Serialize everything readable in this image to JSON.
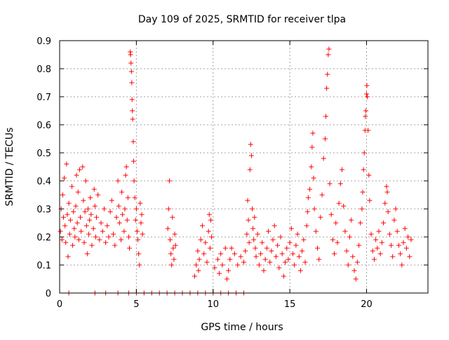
{
  "chart_data": {
    "type": "scatter",
    "title": "Day 109 of 2025, SRMTID for receiver tlpa",
    "xlabel": "GPS time / hours",
    "ylabel": "SRMTID / TECUs",
    "xlim": [
      0,
      24
    ],
    "ylim": [
      0,
      0.9
    ],
    "grid": true,
    "marker": "+",
    "color": "#ff0000",
    "x_ticks": [
      0,
      5,
      10,
      15,
      20
    ],
    "x_tick_labels": [
      "0",
      "5",
      "10",
      "15",
      "20"
    ],
    "y_ticks": [
      0,
      0.1,
      0.2,
      0.3,
      0.4,
      0.5,
      0.6,
      0.7,
      0.8,
      0.9
    ],
    "y_tick_labels": [
      "0",
      "0.1",
      "0.2",
      "0.3",
      "0.4",
      "0.5",
      "0.6",
      "0.7",
      "0.8",
      "0.9"
    ],
    "series": [
      {
        "name": "SRMTID",
        "points": [
          [
            0.05,
            0.22
          ],
          [
            0.1,
            0.3
          ],
          [
            0.15,
            0.19
          ],
          [
            0.2,
            0.35
          ],
          [
            0.25,
            0.27
          ],
          [
            0.3,
            0.41
          ],
          [
            0.35,
            0.24
          ],
          [
            0.4,
            0.18
          ],
          [
            0.45,
            0.46
          ],
          [
            0.5,
            0.28
          ],
          [
            0.55,
            0.13
          ],
          [
            0.6,
            0.32
          ],
          [
            0.65,
            0.21
          ],
          [
            0.7,
            0.26
          ],
          [
            0.8,
            0.38
          ],
          [
            0.85,
            0.17
          ],
          [
            0.9,
            0.29
          ],
          [
            0.95,
            0.23
          ],
          [
            1.0,
            0.2
          ],
          [
            1.05,
            0.31
          ],
          [
            1.1,
            0.42
          ],
          [
            1.15,
            0.25
          ],
          [
            1.2,
            0.36
          ],
          [
            1.25,
            0.19
          ],
          [
            1.3,
            0.44
          ],
          [
            1.35,
            0.27
          ],
          [
            1.4,
            0.22
          ],
          [
            1.5,
            0.45
          ],
          [
            1.55,
            0.33
          ],
          [
            1.6,
            0.18
          ],
          [
            1.65,
            0.29
          ],
          [
            1.7,
            0.4
          ],
          [
            1.75,
            0.24
          ],
          [
            1.8,
            0.14
          ],
          [
            1.85,
            0.3
          ],
          [
            1.9,
            0.21
          ],
          [
            1.95,
            0.26
          ],
          [
            2.0,
            0.34
          ],
          [
            2.05,
            0.28
          ],
          [
            2.1,
            0.17
          ],
          [
            2.2,
            0.23
          ],
          [
            2.25,
            0.37
          ],
          [
            2.3,
            0.31
          ],
          [
            2.35,
            0.2
          ],
          [
            2.4,
            0.27
          ],
          [
            2.5,
            0.35
          ],
          [
            2.6,
            0.19
          ],
          [
            2.7,
            0.25
          ],
          [
            2.8,
            0.22
          ],
          [
            2.9,
            0.3
          ],
          [
            3.0,
            0.18
          ],
          [
            3.1,
            0.24
          ],
          [
            3.2,
            0.2
          ],
          [
            3.3,
            0.29
          ],
          [
            3.4,
            0.33
          ],
          [
            3.5,
            0.21
          ],
          [
            3.6,
            0.17
          ],
          [
            3.7,
            0.27
          ],
          [
            3.8,
            0.4
          ],
          [
            3.85,
            0.31
          ],
          [
            3.9,
            0.25
          ],
          [
            4.0,
            0.19
          ],
          [
            4.05,
            0.36
          ],
          [
            4.1,
            0.28
          ],
          [
            4.2,
            0.22
          ],
          [
            4.25,
            0.3
          ],
          [
            4.3,
            0.42
          ],
          [
            4.35,
            0.45
          ],
          [
            4.4,
            0.26
          ],
          [
            4.45,
            0.34
          ],
          [
            4.5,
            0.2
          ],
          [
            4.55,
            0.16
          ],
          [
            4.6,
            0.86
          ],
          [
            4.62,
            0.85
          ],
          [
            4.65,
            0.82
          ],
          [
            4.68,
            0.79
          ],
          [
            4.7,
            0.75
          ],
          [
            4.72,
            0.69
          ],
          [
            4.74,
            0.65
          ],
          [
            4.76,
            0.62
          ],
          [
            4.8,
            0.54
          ],
          [
            4.82,
            0.47
          ],
          [
            4.85,
            0.4
          ],
          [
            4.9,
            0.34
          ],
          [
            4.95,
            0.26
          ],
          [
            5.0,
            0.3
          ],
          [
            5.05,
            0.22
          ],
          [
            5.1,
            0.19
          ],
          [
            5.15,
            0.14
          ],
          [
            5.2,
            0.1
          ],
          [
            5.25,
            0.32
          ],
          [
            5.3,
            0.25
          ],
          [
            5.35,
            0.28
          ],
          [
            5.4,
            0.21
          ],
          [
            7.05,
            0.23
          ],
          [
            7.1,
            0.3
          ],
          [
            7.15,
            0.4
          ],
          [
            7.2,
            0.19
          ],
          [
            7.25,
            0.14
          ],
          [
            7.3,
            0.1
          ],
          [
            7.35,
            0.27
          ],
          [
            7.4,
            0.16
          ],
          [
            7.45,
            0.12
          ],
          [
            7.5,
            0.21
          ],
          [
            7.55,
            0.17
          ],
          [
            8.8,
            0.06
          ],
          [
            8.9,
            0.1
          ],
          [
            9.0,
            0.15
          ],
          [
            9.05,
            0.08
          ],
          [
            9.1,
            0.12
          ],
          [
            9.2,
            0.19
          ],
          [
            9.3,
            0.24
          ],
          [
            9.4,
            0.14
          ],
          [
            9.5,
            0.18
          ],
          [
            9.6,
            0.11
          ],
          [
            9.7,
            0.22
          ],
          [
            9.75,
            0.28
          ],
          [
            9.8,
            0.16
          ],
          [
            9.85,
            0.26
          ],
          [
            9.9,
            0.2
          ],
          [
            10.1,
            0.09
          ],
          [
            10.3,
            0.12
          ],
          [
            10.4,
            0.07
          ],
          [
            10.5,
            0.14
          ],
          [
            10.6,
            0.1
          ],
          [
            10.8,
            0.16
          ],
          [
            10.9,
            0.05
          ],
          [
            11.0,
            0.08
          ],
          [
            11.1,
            0.12
          ],
          [
            11.2,
            0.16
          ],
          [
            11.4,
            0.14
          ],
          [
            11.6,
            0.1
          ],
          [
            11.8,
            0.13
          ],
          [
            12.0,
            0.11
          ],
          [
            12.1,
            0.15
          ],
          [
            12.2,
            0.21
          ],
          [
            12.25,
            0.33
          ],
          [
            12.3,
            0.26
          ],
          [
            12.35,
            0.18
          ],
          [
            12.4,
            0.44
          ],
          [
            12.45,
            0.53
          ],
          [
            12.5,
            0.49
          ],
          [
            12.55,
            0.3
          ],
          [
            12.6,
            0.23
          ],
          [
            12.65,
            0.19
          ],
          [
            12.7,
            0.27
          ],
          [
            12.75,
            0.16
          ],
          [
            12.8,
            0.13
          ],
          [
            12.9,
            0.21
          ],
          [
            13.0,
            0.1
          ],
          [
            13.1,
            0.14
          ],
          [
            13.2,
            0.18
          ],
          [
            13.3,
            0.08
          ],
          [
            13.4,
            0.12
          ],
          [
            13.5,
            0.16
          ],
          [
            13.6,
            0.22
          ],
          [
            13.7,
            0.11
          ],
          [
            13.8,
            0.15
          ],
          [
            13.9,
            0.19
          ],
          [
            14.0,
            0.24
          ],
          [
            14.1,
            0.13
          ],
          [
            14.2,
            0.17
          ],
          [
            14.3,
            0.09
          ],
          [
            14.4,
            0.2
          ],
          [
            14.5,
            0.14
          ],
          [
            14.6,
            0.06
          ],
          [
            14.7,
            0.11
          ],
          [
            14.8,
            0.16
          ],
          [
            14.9,
            0.12
          ],
          [
            15.0,
            0.18
          ],
          [
            15.1,
            0.23
          ],
          [
            15.2,
            0.14
          ],
          [
            15.3,
            0.1
          ],
          [
            15.4,
            0.17
          ],
          [
            15.5,
            0.21
          ],
          [
            15.6,
            0.13
          ],
          [
            15.7,
            0.08
          ],
          [
            15.8,
            0.15
          ],
          [
            15.9,
            0.19
          ],
          [
            16.0,
            0.11
          ],
          [
            16.1,
            0.24
          ],
          [
            16.15,
            0.29
          ],
          [
            16.2,
            0.34
          ],
          [
            16.3,
            0.37
          ],
          [
            16.4,
            0.45
          ],
          [
            16.45,
            0.52
          ],
          [
            16.5,
            0.57
          ],
          [
            16.55,
            0.41
          ],
          [
            16.6,
            0.3
          ],
          [
            16.7,
            0.22
          ],
          [
            16.8,
            0.16
          ],
          [
            16.9,
            0.12
          ],
          [
            17.0,
            0.27
          ],
          [
            17.1,
            0.35
          ],
          [
            17.2,
            0.48
          ],
          [
            17.3,
            0.55
          ],
          [
            17.35,
            0.63
          ],
          [
            17.4,
            0.73
          ],
          [
            17.45,
            0.78
          ],
          [
            17.5,
            0.85
          ],
          [
            17.55,
            0.87
          ],
          [
            17.6,
            0.39
          ],
          [
            17.7,
            0.28
          ],
          [
            17.8,
            0.19
          ],
          [
            17.9,
            0.14
          ],
          [
            18.0,
            0.25
          ],
          [
            18.1,
            0.18
          ],
          [
            18.2,
            0.32
          ],
          [
            18.3,
            0.39
          ],
          [
            18.4,
            0.44
          ],
          [
            18.5,
            0.31
          ],
          [
            18.6,
            0.22
          ],
          [
            18.7,
            0.15
          ],
          [
            18.8,
            0.1
          ],
          [
            18.9,
            0.2
          ],
          [
            19.0,
            0.26
          ],
          [
            19.1,
            0.13
          ],
          [
            19.2,
            0.08
          ],
          [
            19.3,
            0.05
          ],
          [
            19.4,
            0.11
          ],
          [
            19.5,
            0.17
          ],
          [
            19.6,
            0.25
          ],
          [
            19.7,
            0.3
          ],
          [
            19.75,
            0.36
          ],
          [
            19.8,
            0.44
          ],
          [
            19.85,
            0.5
          ],
          [
            19.9,
            0.58
          ],
          [
            19.92,
            0.63
          ],
          [
            19.95,
            0.65
          ],
          [
            20.0,
            0.71
          ],
          [
            20.02,
            0.74
          ],
          [
            20.05,
            0.7
          ],
          [
            20.1,
            0.58
          ],
          [
            20.15,
            0.42
          ],
          [
            20.2,
            0.33
          ],
          [
            20.3,
            0.21
          ],
          [
            20.4,
            0.15
          ],
          [
            20.5,
            0.12
          ],
          [
            20.6,
            0.19
          ],
          [
            20.7,
            0.16
          ],
          [
            20.8,
            0.22
          ],
          [
            20.9,
            0.14
          ],
          [
            21.0,
            0.18
          ],
          [
            21.1,
            0.25
          ],
          [
            21.2,
            0.32
          ],
          [
            21.3,
            0.38
          ],
          [
            21.35,
            0.36
          ],
          [
            21.4,
            0.29
          ],
          [
            21.5,
            0.21
          ],
          [
            21.6,
            0.17
          ],
          [
            21.7,
            0.13
          ],
          [
            21.8,
            0.26
          ],
          [
            21.9,
            0.3
          ],
          [
            22.0,
            0.22
          ],
          [
            22.1,
            0.17
          ],
          [
            22.2,
            0.14
          ],
          [
            22.3,
            0.1
          ],
          [
            22.4,
            0.18
          ],
          [
            22.5,
            0.23
          ],
          [
            22.6,
            0.16
          ],
          [
            22.7,
            0.2
          ],
          [
            22.8,
            0.13
          ],
          [
            22.9,
            0.19
          ],
          [
            0.6,
            0.0
          ],
          [
            2.3,
            0.0
          ],
          [
            3.0,
            0.0
          ],
          [
            3.8,
            0.0
          ],
          [
            4.5,
            0.0
          ],
          [
            5.0,
            0.0
          ],
          [
            5.5,
            0.0
          ],
          [
            6.0,
            0.0
          ],
          [
            6.5,
            0.0
          ],
          [
            7.0,
            0.0
          ],
          [
            7.5,
            0.0
          ],
          [
            8.0,
            0.0
          ],
          [
            8.5,
            0.0
          ],
          [
            9.0,
            0.0
          ],
          [
            9.5,
            0.0
          ],
          [
            10.0,
            0.0
          ],
          [
            10.5,
            0.0
          ],
          [
            11.0,
            0.0
          ],
          [
            11.5,
            0.0
          ],
          [
            12.0,
            0.0
          ]
        ]
      }
    ]
  }
}
